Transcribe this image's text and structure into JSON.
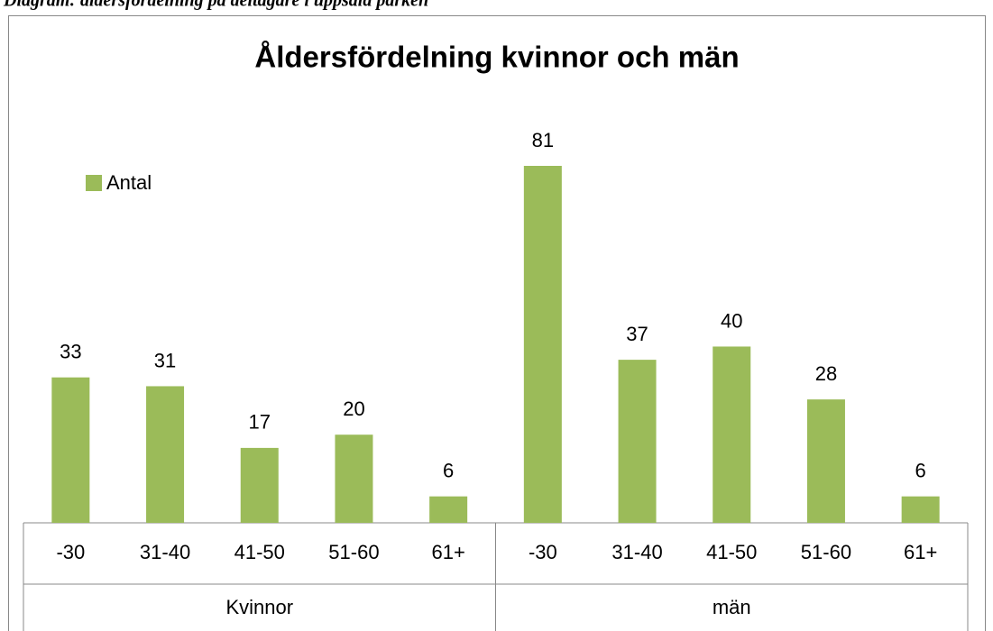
{
  "caption": "Diagram: åldersfördelning på deltagare i uppsala parken",
  "chart_data": {
    "type": "bar",
    "title": "Åldersfördelning kvinnor och män",
    "categories": [
      "-30",
      "31-40",
      "41-50",
      "51-60",
      "61+",
      "-30",
      "31-40",
      "41-50",
      "51-60",
      "61+"
    ],
    "groups": [
      "Kvinnor",
      "män"
    ],
    "series": [
      {
        "name": "Antal",
        "color": "#9bbb59",
        "values": [
          33,
          31,
          17,
          20,
          6,
          81,
          37,
          40,
          28,
          6
        ]
      }
    ],
    "ylim": [
      0,
      90
    ],
    "legend": "left"
  }
}
